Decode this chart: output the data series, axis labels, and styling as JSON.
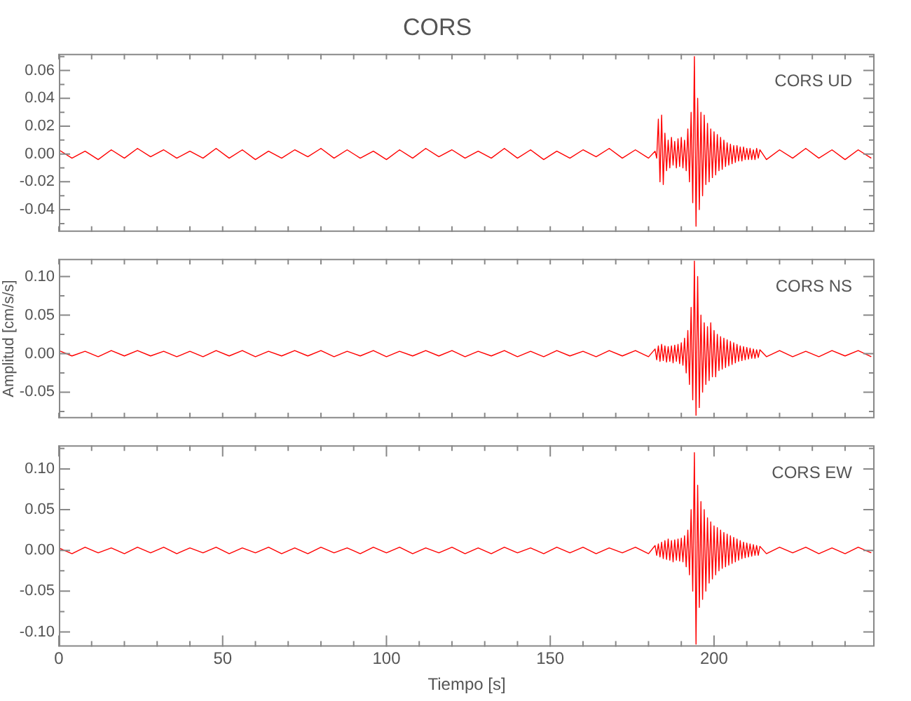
{
  "chart_data": [
    {
      "type": "line",
      "title": "CORS",
      "annotations": [
        "CORS UD"
      ],
      "grid": false,
      "legend": false,
      "marker": "none",
      "tick_labels": "y",
      "xlim": [
        0,
        249
      ],
      "xticks": [
        {
          "value": 0,
          "label": null
        },
        {
          "value": 10,
          "label": null
        },
        {
          "value": 20,
          "label": null
        },
        {
          "value": 30,
          "label": null
        },
        {
          "value": 40,
          "label": null
        },
        {
          "value": 50,
          "label": null
        },
        {
          "value": 60,
          "label": null
        },
        {
          "value": 70,
          "label": null
        },
        {
          "value": 80,
          "label": null
        },
        {
          "value": 90,
          "label": null
        },
        {
          "value": 100,
          "label": null
        },
        {
          "value": 110,
          "label": null
        },
        {
          "value": 120,
          "label": null
        },
        {
          "value": 130,
          "label": null
        },
        {
          "value": 140,
          "label": null
        },
        {
          "value": 150,
          "label": null
        },
        {
          "value": 160,
          "label": null
        },
        {
          "value": 170,
          "label": null
        },
        {
          "value": 180,
          "label": null
        },
        {
          "value": 190,
          "label": null
        },
        {
          "value": 200,
          "label": null
        },
        {
          "value": 210,
          "label": null
        },
        {
          "value": 220,
          "label": null
        },
        {
          "value": 230,
          "label": null
        },
        {
          "value": 240,
          "label": null
        }
      ],
      "ylim": [
        -0.056,
        0.072
      ],
      "yticks": [
        {
          "value": -0.05,
          "label": null
        },
        -0.04,
        {
          "value": -0.03,
          "label": null
        },
        -0.02,
        {
          "value": -0.01,
          "label": null
        },
        {
          "value": 0,
          "label": "0.00"
        },
        {
          "value": 0.01,
          "label": null
        },
        0.02,
        {
          "value": 0.03,
          "label": null
        },
        0.04,
        {
          "value": 0.05,
          "label": null
        },
        0.06,
        {
          "value": 0.07,
          "label": null
        }
      ],
      "x": [
        0,
        4,
        8,
        12,
        16,
        20,
        24,
        28,
        32,
        36,
        40,
        44,
        48,
        52,
        56,
        60,
        64,
        68,
        72,
        76,
        80,
        84,
        88,
        92,
        96,
        100,
        104,
        108,
        112,
        116,
        120,
        124,
        128,
        132,
        136,
        140,
        144,
        148,
        152,
        156,
        160,
        164,
        168,
        172,
        176,
        180,
        182,
        182.5,
        183,
        183.5,
        184,
        184.5,
        185,
        185.5,
        186,
        186.5,
        187,
        187.5,
        188,
        188.5,
        189,
        189.5,
        190,
        190.5,
        191,
        191.5,
        192,
        192.5,
        193,
        193.5,
        194,
        194.5,
        195,
        195.5,
        196,
        196.5,
        197,
        197.5,
        198,
        198.5,
        199,
        199.5,
        200,
        200.5,
        201,
        201.5,
        202,
        202.5,
        203,
        203.5,
        204,
        204.5,
        205,
        205.5,
        206,
        206.5,
        207,
        207.5,
        208,
        208.5,
        209,
        209.5,
        210,
        210.5,
        211,
        211.5,
        212,
        212.5,
        213,
        213.5,
        214,
        216,
        220,
        224,
        228,
        232,
        236,
        240,
        244,
        248
      ],
      "series": [
        {
          "color": "#ff0000",
          "values": [
            0.003,
            -0.003,
            0.002,
            -0.004,
            0.003,
            -0.003,
            0.004,
            -0.002,
            0.003,
            -0.003,
            0.002,
            -0.003,
            0.004,
            -0.003,
            0.003,
            -0.004,
            0.002,
            -0.003,
            0.003,
            -0.002,
            0.004,
            -0.003,
            0.003,
            -0.003,
            0.002,
            -0.004,
            0.003,
            -0.003,
            0.004,
            -0.002,
            0.003,
            -0.003,
            0.002,
            -0.003,
            0.004,
            -0.003,
            0.003,
            -0.004,
            0.002,
            -0.003,
            0.003,
            -0.002,
            0.004,
            -0.003,
            0.003,
            -0.003,
            0.002,
            -0.003,
            0.025,
            -0.02,
            0.028,
            -0.022,
            0.015,
            -0.012,
            0.01,
            -0.01,
            0.012,
            -0.008,
            0.009,
            -0.01,
            0.011,
            -0.009,
            0.012,
            -0.01,
            0.01,
            -0.012,
            0.018,
            -0.02,
            0.03,
            -0.035,
            0.07,
            -0.052,
            0.04,
            -0.04,
            0.03,
            -0.03,
            0.028,
            -0.022,
            0.022,
            -0.02,
            0.018,
            -0.017,
            0.016,
            -0.015,
            0.014,
            -0.012,
            0.012,
            -0.011,
            0.01,
            -0.009,
            0.008,
            -0.008,
            0.007,
            -0.007,
            0.006,
            -0.006,
            0.006,
            -0.005,
            0.005,
            -0.005,
            0.005,
            -0.004,
            0.004,
            -0.004,
            0.004,
            -0.004,
            0.003,
            -0.004,
            0.004,
            -0.003,
            0.003,
            -0.004,
            0.003,
            -0.003,
            0.004,
            -0.003,
            0.003,
            -0.004,
            0.003,
            -0.003
          ]
        }
      ]
    },
    {
      "type": "line",
      "ylabel": "Amplitud [cm/s/s]",
      "annotations": [
        "CORS NS"
      ],
      "grid": false,
      "legend": false,
      "marker": "none",
      "tick_labels": "y",
      "xlim": [
        0,
        249
      ],
      "xticks": [
        {
          "value": 0,
          "label": null
        },
        {
          "value": 10,
          "label": null
        },
        {
          "value": 20,
          "label": null
        },
        {
          "value": 30,
          "label": null
        },
        {
          "value": 40,
          "label": null
        },
        {
          "value": 50,
          "label": null
        },
        {
          "value": 60,
          "label": null
        },
        {
          "value": 70,
          "label": null
        },
        {
          "value": 80,
          "label": null
        },
        {
          "value": 90,
          "label": null
        },
        {
          "value": 100,
          "label": null
        },
        {
          "value": 110,
          "label": null
        },
        {
          "value": 120,
          "label": null
        },
        {
          "value": 130,
          "label": null
        },
        {
          "value": 140,
          "label": null
        },
        {
          "value": 150,
          "label": null
        },
        {
          "value": 160,
          "label": null
        },
        {
          "value": 170,
          "label": null
        },
        {
          "value": 180,
          "label": null
        },
        {
          "value": 190,
          "label": null
        },
        {
          "value": 200,
          "label": null
        },
        {
          "value": 210,
          "label": null
        },
        {
          "value": 220,
          "label": null
        },
        {
          "value": 230,
          "label": null
        },
        {
          "value": 240,
          "label": null
        }
      ],
      "ylim": [
        -0.084,
        0.123
      ],
      "yticks": [
        {
          "value": -0.075,
          "label": null
        },
        -0.05,
        {
          "value": -0.025,
          "label": null
        },
        {
          "value": 0,
          "label": "0.00"
        },
        {
          "value": 0.025,
          "label": null
        },
        0.05,
        {
          "value": 0.075,
          "label": null
        },
        {
          "value": 0.1,
          "label": "0.10"
        }
      ],
      "x": [
        0,
        4,
        8,
        12,
        16,
        20,
        24,
        28,
        32,
        36,
        40,
        44,
        48,
        52,
        56,
        60,
        64,
        68,
        72,
        76,
        80,
        84,
        88,
        92,
        96,
        100,
        104,
        108,
        112,
        116,
        120,
        124,
        128,
        132,
        136,
        140,
        144,
        148,
        152,
        156,
        160,
        164,
        168,
        172,
        176,
        180,
        182,
        182.5,
        183,
        183.5,
        184,
        184.5,
        185,
        185.5,
        186,
        186.5,
        187,
        187.5,
        188,
        188.5,
        189,
        189.5,
        190,
        190.5,
        191,
        191.5,
        192,
        192.5,
        193,
        193.5,
        194,
        194.5,
        195,
        195.5,
        196,
        196.5,
        197,
        197.5,
        198,
        198.5,
        199,
        199.5,
        200,
        200.5,
        201,
        201.5,
        202,
        202.5,
        203,
        203.5,
        204,
        204.5,
        205,
        205.5,
        206,
        206.5,
        207,
        207.5,
        208,
        208.5,
        209,
        209.5,
        210,
        210.5,
        211,
        211.5,
        212,
        212.5,
        213,
        213.5,
        214,
        216,
        220,
        224,
        228,
        232,
        236,
        240,
        244,
        248
      ],
      "series": [
        {
          "color": "#ff0000",
          "values": [
            0.004,
            -0.003,
            0.003,
            -0.004,
            0.004,
            -0.003,
            0.004,
            -0.003,
            0.003,
            -0.004,
            0.003,
            -0.004,
            0.004,
            -0.003,
            0.004,
            -0.004,
            0.003,
            -0.003,
            0.004,
            -0.003,
            0.004,
            -0.004,
            0.003,
            -0.003,
            0.004,
            -0.004,
            0.003,
            -0.003,
            0.004,
            -0.003,
            0.004,
            -0.004,
            0.003,
            -0.003,
            0.004,
            -0.004,
            0.003,
            -0.004,
            0.004,
            -0.003,
            0.003,
            -0.004,
            0.004,
            -0.003,
            0.004,
            -0.004,
            0.006,
            -0.008,
            0.01,
            -0.01,
            0.012,
            -0.009,
            0.01,
            -0.011,
            0.009,
            -0.01,
            0.01,
            -0.012,
            0.011,
            -0.01,
            0.012,
            -0.013,
            0.014,
            -0.015,
            0.02,
            -0.025,
            0.03,
            -0.04,
            0.06,
            -0.06,
            0.12,
            -0.08,
            0.1,
            -0.07,
            0.05,
            -0.05,
            0.04,
            -0.04,
            0.035,
            -0.035,
            0.04,
            -0.03,
            0.03,
            -0.03,
            0.025,
            -0.022,
            0.022,
            -0.02,
            0.02,
            -0.018,
            0.018,
            -0.016,
            0.016,
            -0.014,
            0.014,
            -0.012,
            0.012,
            -0.01,
            0.01,
            -0.009,
            0.009,
            -0.008,
            0.008,
            -0.007,
            0.007,
            -0.006,
            0.006,
            -0.006,
            0.005,
            -0.005,
            0.005,
            -0.004,
            0.004,
            -0.004,
            0.003,
            -0.004,
            0.004,
            -0.003,
            0.004,
            -0.004
          ]
        }
      ]
    },
    {
      "type": "line",
      "xlabel": "Tiempo [s]",
      "annotations": [
        "CORS EW"
      ],
      "grid": false,
      "legend": false,
      "marker": "none",
      "xlim": [
        0,
        249
      ],
      "xticks": [
        0,
        {
          "value": 10,
          "label": null
        },
        {
          "value": 20,
          "label": null
        },
        {
          "value": 30,
          "label": null
        },
        {
          "value": 40,
          "label": null
        },
        50,
        {
          "value": 60,
          "label": null
        },
        {
          "value": 70,
          "label": null
        },
        {
          "value": 80,
          "label": null
        },
        {
          "value": 90,
          "label": null
        },
        100,
        {
          "value": 110,
          "label": null
        },
        {
          "value": 120,
          "label": null
        },
        {
          "value": 130,
          "label": null
        },
        {
          "value": 140,
          "label": null
        },
        150,
        {
          "value": 160,
          "label": null
        },
        {
          "value": 170,
          "label": null
        },
        {
          "value": 180,
          "label": null
        },
        {
          "value": 190,
          "label": null
        },
        200,
        {
          "value": 210,
          "label": null
        },
        {
          "value": 220,
          "label": null
        },
        {
          "value": 230,
          "label": null
        },
        {
          "value": 240,
          "label": null
        }
      ],
      "ylim": [
        -0.118,
        0.129
      ],
      "yticks": [
        {
          "value": -0.1,
          "label": "-0.10"
        },
        {
          "value": -0.075,
          "label": null
        },
        -0.05,
        {
          "value": -0.025,
          "label": null
        },
        {
          "value": 0,
          "label": "0.00"
        },
        {
          "value": 0.025,
          "label": null
        },
        0.05,
        {
          "value": 0.075,
          "label": null
        },
        {
          "value": 0.1,
          "label": "0.10"
        },
        {
          "value": 0.125,
          "label": null
        }
      ],
      "x": [
        0,
        4,
        8,
        12,
        16,
        20,
        24,
        28,
        32,
        36,
        40,
        44,
        48,
        52,
        56,
        60,
        64,
        68,
        72,
        76,
        80,
        84,
        88,
        92,
        96,
        100,
        104,
        108,
        112,
        116,
        120,
        124,
        128,
        132,
        136,
        140,
        144,
        148,
        152,
        156,
        160,
        164,
        168,
        172,
        176,
        180,
        182,
        182.5,
        183,
        183.5,
        184,
        184.5,
        185,
        185.5,
        186,
        186.5,
        187,
        187.5,
        188,
        188.5,
        189,
        189.5,
        190,
        190.5,
        191,
        191.5,
        192,
        192.5,
        193,
        193.5,
        194,
        194.5,
        195,
        195.5,
        196,
        196.5,
        197,
        197.5,
        198,
        198.5,
        199,
        199.5,
        200,
        200.5,
        201,
        201.5,
        202,
        202.5,
        203,
        203.5,
        204,
        204.5,
        205,
        205.5,
        206,
        206.5,
        207,
        207.5,
        208,
        208.5,
        209,
        209.5,
        210,
        210.5,
        211,
        211.5,
        212,
        212.5,
        213,
        213.5,
        214,
        216,
        220,
        224,
        228,
        232,
        236,
        240,
        244,
        248
      ],
      "series": [
        {
          "color": "#ff0000",
          "values": [
            0.003,
            -0.004,
            0.004,
            -0.003,
            0.003,
            -0.004,
            0.004,
            -0.003,
            0.004,
            -0.004,
            0.003,
            -0.003,
            0.004,
            -0.004,
            0.003,
            -0.003,
            0.004,
            -0.004,
            0.003,
            -0.004,
            0.004,
            -0.003,
            0.003,
            -0.004,
            0.004,
            -0.003,
            0.004,
            -0.004,
            0.003,
            -0.003,
            0.004,
            -0.004,
            0.003,
            -0.004,
            0.004,
            -0.003,
            0.003,
            -0.004,
            0.004,
            -0.003,
            0.004,
            -0.004,
            0.003,
            -0.003,
            0.004,
            -0.004,
            0.006,
            -0.006,
            0.008,
            -0.008,
            0.01,
            -0.01,
            0.012,
            -0.011,
            0.014,
            -0.012,
            0.012,
            -0.014,
            0.013,
            -0.012,
            0.014,
            -0.013,
            0.015,
            -0.014,
            0.018,
            -0.02,
            0.025,
            -0.03,
            0.05,
            -0.05,
            0.12,
            -0.115,
            0.08,
            -0.07,
            0.06,
            -0.06,
            0.05,
            -0.05,
            0.04,
            -0.04,
            0.035,
            -0.035,
            0.03,
            -0.03,
            0.028,
            -0.025,
            0.025,
            -0.022,
            0.022,
            -0.02,
            0.02,
            -0.018,
            0.018,
            -0.016,
            0.016,
            -0.014,
            0.014,
            -0.012,
            0.012,
            -0.01,
            0.01,
            -0.009,
            0.009,
            -0.008,
            0.008,
            -0.007,
            0.007,
            -0.006,
            0.006,
            -0.006,
            0.005,
            -0.004,
            0.004,
            -0.003,
            0.004,
            -0.004,
            0.003,
            -0.004,
            0.004,
            -0.003
          ]
        }
      ]
    }
  ]
}
